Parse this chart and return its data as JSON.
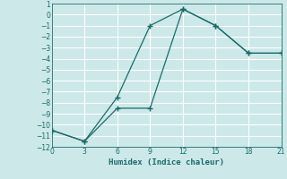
{
  "xlabel": "Humidex (Indice chaleur)",
  "ylabel": "",
  "bg_color": "#cce8e8",
  "grid_color": "#ffffff",
  "line_color": "#1a6b6b",
  "line1_x": [
    0,
    3,
    6,
    9,
    12,
    15,
    18,
    21
  ],
  "line1_y": [
    -10.5,
    -11.5,
    -7.5,
    -1.0,
    0.5,
    -1.0,
    -3.5,
    -3.5
  ],
  "line2_x": [
    0,
    3,
    6,
    9,
    12,
    15,
    18,
    21
  ],
  "line2_y": [
    -10.5,
    -11.5,
    -8.5,
    -8.5,
    0.5,
    -1.0,
    -3.5,
    -3.5
  ],
  "xlim": [
    0,
    21
  ],
  "ylim": [
    -12,
    1
  ],
  "xticks": [
    0,
    3,
    6,
    9,
    12,
    15,
    18,
    21
  ],
  "yticks": [
    -12,
    -11,
    -10,
    -9,
    -8,
    -7,
    -6,
    -5,
    -4,
    -3,
    -2,
    -1,
    0,
    1
  ]
}
